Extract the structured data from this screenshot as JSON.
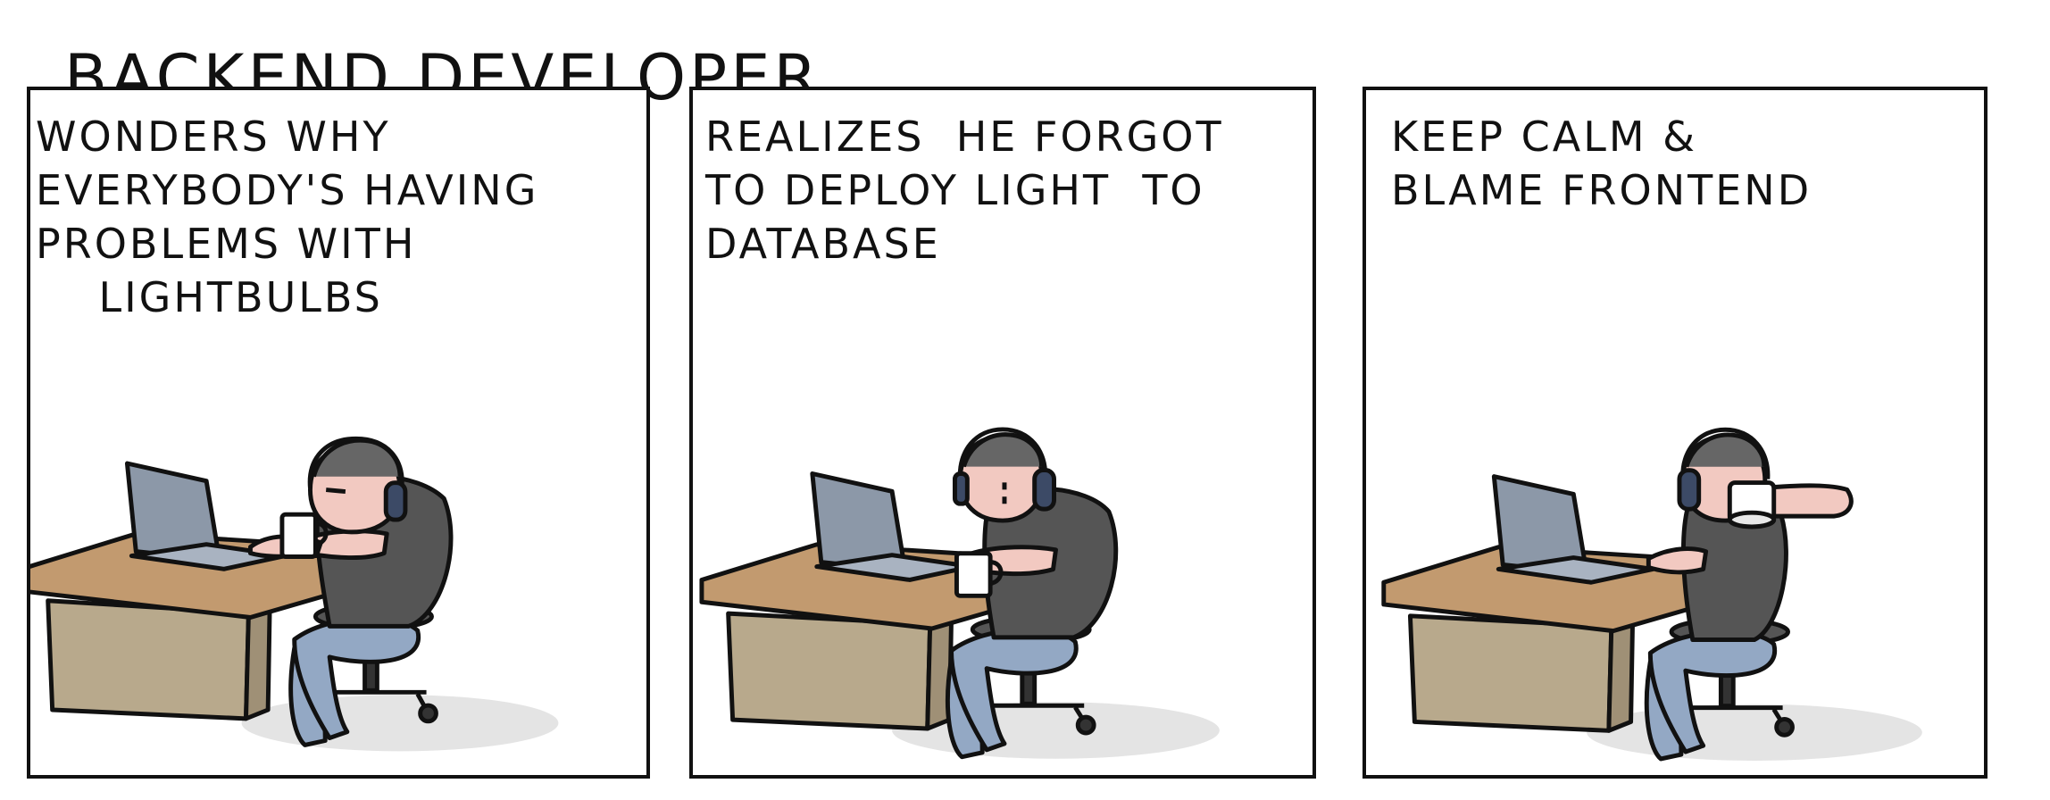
{
  "comic": {
    "title": "BACKEND DEVELOPER",
    "panels": [
      {
        "caption": "WONDERS WHY\nEVERYBODY'S HAVING\nPROBLEMS WITH\n    LIGHTBULBS"
      },
      {
        "caption": "REALIZES  HE FORGOT\nTO DEPLOY LIGHT  TO\nDATABASE"
      },
      {
        "caption": "KEEP CALM &\nBLAME FRONTEND"
      }
    ]
  },
  "colors": {
    "outline": "#111111",
    "desk_top": "#c29a6f",
    "desk_body": "#b8a98c",
    "laptop": "#8c98a8",
    "shirt": "#555555",
    "jeans": "#93a8c4",
    "skin": "#f2c9c1",
    "headphones": "#3c4a66",
    "floor_shadow": "#e4e4e4"
  },
  "icons": [
    "developer-figure",
    "laptop",
    "coffee-mug",
    "office-chair",
    "desk"
  ]
}
